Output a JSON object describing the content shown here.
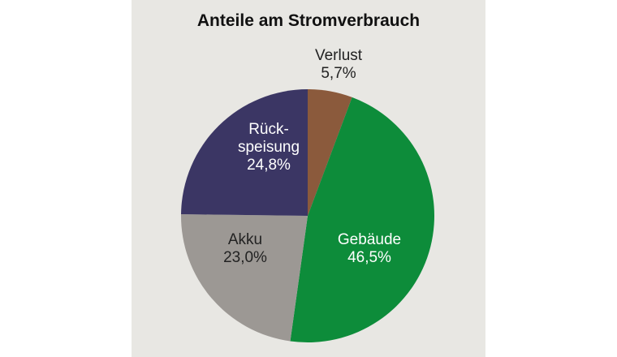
{
  "chart_data": {
    "type": "pie",
    "title": "Anteile am Stromverbrauch",
    "slices": [
      {
        "name": "Verlust",
        "label_lines": [
          "Verlust",
          "5,7%"
        ],
        "value": 5.7,
        "color": "#8b5a3c",
        "text_color": "#222222"
      },
      {
        "name": "Gebäude",
        "label_lines": [
          "Gebäude",
          "46,5%"
        ],
        "value": 46.5,
        "color": "#0d8c3a",
        "text_color": "#ffffff"
      },
      {
        "name": "Akku",
        "label_lines": [
          "Akku",
          "23,0%"
        ],
        "value": 23.0,
        "color": "#9c9894",
        "text_color": "#222222"
      },
      {
        "name": "Rückspeisung",
        "label_lines": [
          "Rück-",
          "speisung",
          "24,8%"
        ],
        "value": 24.8,
        "color": "#3b3664",
        "text_color": "#ffffff"
      }
    ],
    "start": "top",
    "direction": "clockwise"
  }
}
